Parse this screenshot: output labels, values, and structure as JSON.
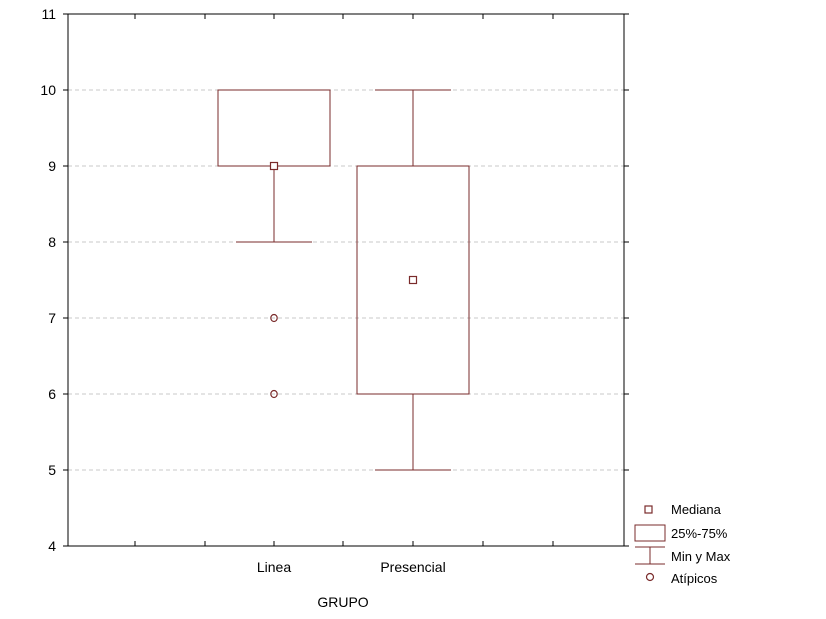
{
  "chart_data": {
    "type": "boxplot",
    "xlabel": "GRUPO",
    "ylabel": "",
    "ylim": [
      4,
      11
    ],
    "yticks": [
      "4",
      "5",
      "6",
      "7",
      "8",
      "9",
      "10",
      "11"
    ],
    "grid": true,
    "legend_position": "bottom-right",
    "categories": [
      "Linea",
      "Presencial"
    ],
    "series": [
      {
        "median": 9,
        "q1": 9,
        "q3": 10,
        "min": 8,
        "max": 10,
        "outliers": [
          7,
          6
        ]
      },
      {
        "median": 7.5,
        "q1": 6,
        "q3": 9,
        "min": 5,
        "max": 10,
        "outliers": []
      }
    ],
    "legend": {
      "median": "Mediana",
      "box": "25%-75%",
      "whisker": "Min y Max",
      "outlier": "Atípicos"
    },
    "colors": {
      "mark": "#7a2b2b",
      "axis": "#000000",
      "grid": "#c8c8c8"
    }
  }
}
